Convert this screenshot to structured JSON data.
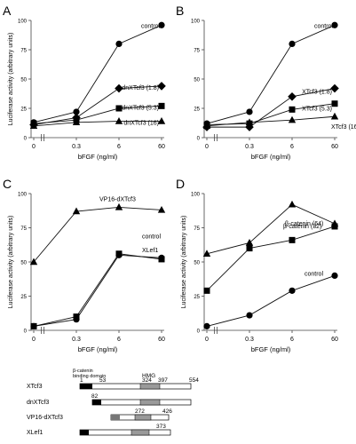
{
  "chart_data": [
    {
      "type": "line",
      "panel": "A",
      "categories": [
        "0",
        "0.3",
        "6",
        "60"
      ],
      "xlabel": "bFGF (ng/ml)",
      "ylabel": "Luciferase activity (arbitrary units)",
      "ylim": [
        0,
        100
      ],
      "yticks": [
        "0",
        "25",
        "50",
        "75",
        "100"
      ],
      "series": [
        {
          "name": "control",
          "marker": "circle",
          "values": [
            13,
            22,
            80,
            96
          ]
        },
        {
          "name": "dnXTcf3 (1.8)",
          "marker": "diamond",
          "values": [
            11,
            17,
            42,
            44
          ]
        },
        {
          "name": "dnXTcf3 (5.3)",
          "marker": "square",
          "values": [
            12,
            15,
            25,
            27
          ]
        },
        {
          "name": "dnXTcf3 (16)",
          "marker": "triangle",
          "values": [
            10,
            13,
            14,
            14
          ]
        }
      ]
    },
    {
      "type": "line",
      "panel": "B",
      "categories": [
        "0",
        "0.3",
        "6",
        "60"
      ],
      "xlabel": "bFGF (ng/ml)",
      "ylabel": "",
      "ylim": [
        0,
        100
      ],
      "yticks": [
        "0",
        "25",
        "50",
        "75",
        "100"
      ],
      "series": [
        {
          "name": "control",
          "marker": "circle",
          "values": [
            12,
            22,
            80,
            96
          ]
        },
        {
          "name": "XTcf3 (1.8)",
          "marker": "diamond",
          "values": [
            9,
            9,
            35,
            42
          ]
        },
        {
          "name": "XTcf3 (5.3)",
          "marker": "square",
          "values": [
            11,
            12,
            24,
            29
          ]
        },
        {
          "name": "XTcf3 (16)",
          "marker": "triangle",
          "values": [
            10,
            13,
            15,
            18
          ]
        }
      ]
    },
    {
      "type": "line",
      "panel": "C",
      "categories": [
        "0",
        "0.3",
        "6",
        "60"
      ],
      "xlabel": "bFGF (ng/ml)",
      "ylabel": "Luciferase activity (arbitrary units)",
      "ylim": [
        0,
        100
      ],
      "yticks": [
        "0",
        "25",
        "50",
        "75",
        "100"
      ],
      "series": [
        {
          "name": "VP16-dXTcf3",
          "marker": "triangle",
          "values": [
            50,
            87,
            90,
            88
          ]
        },
        {
          "name": "control",
          "marker": "circle",
          "values": [
            3,
            8,
            55,
            53
          ]
        },
        {
          "name": "XLef1",
          "marker": "square",
          "values": [
            3,
            10,
            56,
            52
          ]
        }
      ]
    },
    {
      "type": "line",
      "panel": "D",
      "categories": [
        "0",
        "0.3",
        "6",
        "60"
      ],
      "xlabel": "bFGF (ng/ml)",
      "ylabel": "Luciferase activity (arbitrary units)",
      "ylim": [
        0,
        100
      ],
      "yticks": [
        "0",
        "25",
        "50",
        "75",
        "100"
      ],
      "series": [
        {
          "name": "β-catenin (64)",
          "marker": "triangle",
          "values": [
            56,
            64,
            92,
            78
          ]
        },
        {
          "name": "β-catenin (32)",
          "marker": "square",
          "values": [
            29,
            60,
            66,
            76
          ]
        },
        {
          "name": "control",
          "marker": "circle",
          "values": [
            3,
            11,
            29,
            40
          ]
        }
      ]
    }
  ],
  "diagram": {
    "header_left": "β-catenin binding domain",
    "header_hmg": "HMG",
    "constructs": [
      {
        "name": "XTcf3",
        "labels": [
          "1",
          "53",
          "324",
          "397",
          "554"
        ]
      },
      {
        "name": "dnXTcf3",
        "labels": [
          "82"
        ]
      },
      {
        "name": "VP16-dXTcf3",
        "labels": [
          "272",
          "426"
        ]
      },
      {
        "name": "XLef1",
        "labels": [
          "373"
        ]
      }
    ]
  }
}
